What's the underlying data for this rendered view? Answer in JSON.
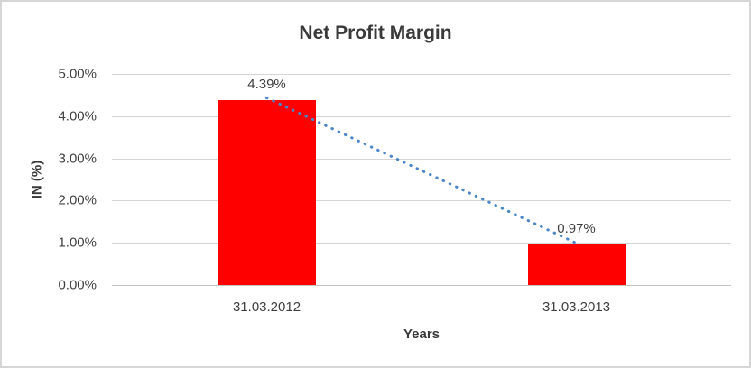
{
  "chart": {
    "title": "Net Profit Margin",
    "x_axis_title": "Years",
    "y_axis_title": "IN (%)",
    "colors": {
      "bar": "#fe0000",
      "trendline": "#4a86c8",
      "gridline": "#d5d5d5",
      "axis_line": "#c3c3c3",
      "text": "#3f3f3f",
      "border": "#d6d6d6",
      "background": "#ffffff"
    }
  },
  "chart_data": {
    "type": "bar",
    "title": "Net Profit Margin",
    "xlabel": "Years",
    "ylabel": "IN (%)",
    "categories": [
      "31.03.2012",
      "31.03.2013"
    ],
    "values": [
      4.39,
      0.97
    ],
    "data_labels": [
      "4.39%",
      "0.97%"
    ],
    "ylim": [
      0,
      5
    ],
    "ytick_step": 1,
    "ytick_labels": [
      "0.00%",
      "1.00%",
      "2.00%",
      "3.00%",
      "4.00%",
      "5.00%"
    ],
    "grid": true,
    "legend": "none",
    "trendline": {
      "type": "linear",
      "style": "dotted",
      "from_value": 4.39,
      "to_value": 0.97
    }
  }
}
